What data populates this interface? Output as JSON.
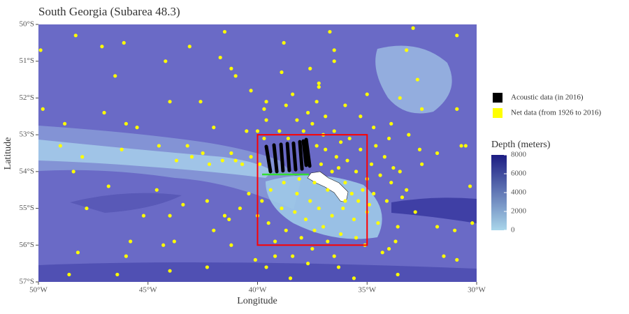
{
  "chart_data": {
    "type": "map",
    "title": "South Georgia (Subarea 48.3)",
    "xlabel": "Longitude",
    "ylabel": "Latitude",
    "xlim": [
      -50,
      -30
    ],
    "ylim": [
      -57,
      -50
    ],
    "xticks": [
      {
        "value": -50,
        "label": "50°W"
      },
      {
        "value": -45,
        "label": "45°W"
      },
      {
        "value": -40,
        "label": "40°W"
      },
      {
        "value": -35,
        "label": "35°W"
      },
      {
        "value": -30,
        "label": "30°W"
      }
    ],
    "yticks": [
      {
        "value": -50,
        "label": "50°S"
      },
      {
        "value": -51,
        "label": "51°S"
      },
      {
        "value": -52,
        "label": "52°S"
      },
      {
        "value": -53,
        "label": "53°S"
      },
      {
        "value": -54,
        "label": "54°S"
      },
      {
        "value": -55,
        "label": "55°S"
      },
      {
        "value": -56,
        "label": "56°S"
      },
      {
        "value": -57,
        "label": "57°S"
      }
    ],
    "series": [
      {
        "name": "Acoustic data (in 2016)",
        "color": "#000000",
        "segments": [
          {
            "x": [
              -39.6,
              -39.41
            ],
            "values": [
              -53.32,
              -54.0
            ]
          },
          {
            "x": [
              -39.25,
              -39.12
            ],
            "values": [
              -53.28,
              -54.0
            ]
          },
          {
            "x": [
              -38.93,
              -38.84
            ],
            "values": [
              -53.26,
              -53.98
            ]
          },
          {
            "x": [
              -38.64,
              -38.55
            ],
            "values": [
              -53.24,
              -53.97
            ]
          },
          {
            "x": [
              -38.36,
              -38.26
            ],
            "values": [
              -53.23,
              -53.95
            ]
          },
          {
            "x": [
              -38.07,
              -37.97
            ],
            "values": [
              -53.19,
              -53.93
            ]
          },
          {
            "x": [
              -37.91,
              -37.78
            ],
            "values": [
              -53.17,
              -53.83
            ]
          },
          {
            "x": [
              -37.78,
              -37.62
            ],
            "values": [
              -53.13,
              -53.85
            ]
          }
        ]
      },
      {
        "name": "Net data (from 1926 to 2016)",
        "color": "#ffff00",
        "x": [
          -49.9,
          -48.3,
          -47.1,
          -46.1,
          -43.1,
          -41.5,
          -38.8,
          -36.7,
          -36.5,
          -33.2,
          -30.9,
          -32.9,
          -44.2,
          -41.2,
          -38.9,
          -36.5,
          -32.7,
          -46.5,
          -49.8,
          -47.0,
          -44.0,
          -42.6,
          -39.7,
          -37.2,
          -35.0,
          -33.5,
          -32.5,
          -30.9,
          -48.8,
          -46.0,
          -45.5,
          -42.0,
          -40.5,
          -39.6,
          -49.0,
          -48.0,
          -46.2,
          -44.5,
          -43.2,
          -42.5,
          -41.2,
          -30.7,
          -30.5,
          -31.8,
          -32.5,
          -33.5,
          -30.3,
          -48.4,
          -46.8,
          -44.6,
          -42.3,
          -43.4,
          -47.8,
          -45.2,
          -44.0,
          -41.5,
          -41.3,
          -42.0,
          -37.0,
          -33.6,
          -31.8,
          -31.0,
          -30.2,
          -45.8,
          -44.3,
          -43.8,
          -41.2,
          -39.2,
          -34.0,
          -31.5,
          -30.9,
          -48.2,
          -46.0,
          -48.6,
          -46.4,
          -42.3,
          -39.6,
          -37.7,
          -36.3,
          -35.6,
          -33.6,
          -44.0,
          -40.1,
          -38.5,
          -37.3,
          -37.7,
          -36.9,
          -37.5,
          -38.2,
          -36.5,
          -37.0,
          -37.9,
          -36.2,
          -35.8,
          -36.9,
          -37.3,
          -35.3,
          -34.6,
          -34.0,
          -36.4,
          -35.9,
          -37.1,
          -34.8,
          -34.2,
          -33.8,
          -36.6,
          -35.5,
          -35.0,
          -34.4,
          -33.9,
          -36.0,
          -36.8,
          -35.7,
          -35.2,
          -34.7,
          -34.1,
          -33.4,
          -38.8,
          -39.4,
          -38.2,
          -37.6,
          -39.8,
          -38.9,
          -38.3,
          -37.8,
          -37.2,
          -36.6,
          -36.1,
          -35.6,
          -35.0,
          -34.5,
          -39.5,
          -38.7,
          -38.0,
          -37.4,
          -36.8,
          -36.2,
          -35.5,
          -39.2,
          -40.0,
          -40.4,
          -40.8,
          -39.9,
          -40.3,
          -40.7,
          -41.0,
          -41.6,
          -42.2,
          -43.0,
          -43.7,
          -39.7,
          -40.0,
          -39.0,
          -38.6,
          -41.7,
          -41.0,
          -40.3,
          -39.6,
          -38.7,
          -38.4,
          -37.6,
          -37.2,
          -36.0,
          -35.3,
          -34.7,
          -33.9,
          -33.1,
          -32.6,
          -33.2,
          -32.8,
          -33.7,
          -34.3,
          -35.1,
          -36.5,
          -37.5,
          -38.4,
          -36.0,
          -35.4,
          -34.9,
          -36.3,
          -37.4,
          -38.1
        ],
        "values": [
          -50.7,
          -50.3,
          -50.6,
          -50.5,
          -50.6,
          -50.2,
          -50.5,
          -50.2,
          -50.7,
          -50.7,
          -50.3,
          -50.1,
          -51.0,
          -51.2,
          -51.3,
          -51.0,
          -51.5,
          -51.4,
          -52.3,
          -52.4,
          -52.1,
          -52.1,
          -52.3,
          -51.7,
          -51.9,
          -52.0,
          -52.3,
          -52.3,
          -52.7,
          -52.7,
          -52.8,
          -52.8,
          -52.9,
          -52.6,
          -53.3,
          -53.6,
          -53.4,
          -53.3,
          -53.3,
          -53.5,
          -53.5,
          -53.3,
          -53.3,
          -53.5,
          -53.8,
          -54.0,
          -54.4,
          -54.0,
          -54.4,
          -54.5,
          -54.8,
          -54.9,
          -55.0,
          -55.2,
          -55.2,
          -55.2,
          -55.3,
          -55.6,
          -55.5,
          -55.5,
          -55.5,
          -55.6,
          -55.4,
          -55.9,
          -56.0,
          -55.9,
          -56.0,
          -56.3,
          -56.1,
          -56.3,
          -56.4,
          -56.2,
          -56.3,
          -56.8,
          -56.8,
          -56.6,
          -56.6,
          -56.5,
          -56.6,
          -56.9,
          -56.8,
          -56.7,
          -56.4,
          -56.9,
          -52.1,
          -52.4,
          -52.5,
          -52.7,
          -52.6,
          -52.9,
          -53.0,
          -52.9,
          -53.2,
          -53.1,
          -53.4,
          -53.3,
          -53.4,
          -53.3,
          -53.1,
          -53.6,
          -53.7,
          -53.8,
          -53.8,
          -53.6,
          -53.9,
          -54.0,
          -54.0,
          -54.2,
          -54.1,
          -54.3,
          -54.3,
          -54.5,
          -54.6,
          -54.5,
          -54.6,
          -54.8,
          -54.7,
          -54.3,
          -54.5,
          -54.6,
          -54.8,
          -54.8,
          -55.0,
          -55.1,
          -55.3,
          -55.0,
          -55.2,
          -55.0,
          -55.3,
          -55.1,
          -55.4,
          -55.4,
          -55.6,
          -55.8,
          -55.6,
          -55.9,
          -55.7,
          -55.8,
          -55.9,
          -55.2,
          -54.6,
          -55.0,
          -53.8,
          -53.6,
          -53.8,
          -53.7,
          -53.7,
          -53.8,
          -53.6,
          -53.7,
          -53.1,
          -52.9,
          -52.9,
          -53.1,
          -50.9,
          -51.4,
          -51.8,
          -52.1,
          -52.2,
          -51.9,
          -51.2,
          -51.6,
          -52.2,
          -52.5,
          -52.8,
          -52.7,
          -53.0,
          -53.4,
          -54.5,
          -55.1,
          -55.9,
          -56.2,
          -56.0,
          -56.3,
          -56.1,
          -56.3,
          -54.8,
          -54.8,
          -54.9,
          -53.9,
          -54.3,
          -54.2
        ]
      }
    ],
    "box": {
      "xlim": [
        -40,
        -35
      ],
      "ylim": [
        -56,
        -53
      ],
      "color": "#ff0000"
    },
    "colorbar": {
      "title": "Depth (meters)",
      "lim": [
        0,
        8000
      ],
      "ticks": [
        0,
        2000,
        4000,
        6000,
        8000
      ],
      "colors": [
        "#a9d6ea",
        "#1c1c82"
      ]
    }
  }
}
